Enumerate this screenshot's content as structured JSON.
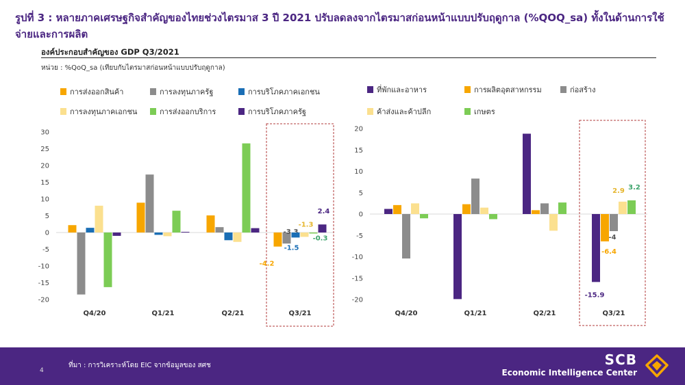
{
  "header": {
    "title": "รูปที่ 3 : หลายภาคเศรษฐกิจสำคัญของไทยช่วงไตรมาส 3 ปี 2021 ปรับลดลงจากไตรมาสก่อนหน้าแบบปรับฤดูกาล (%QOQ_sa) ทั้งในด้านการใช้จ่ายและการผลิต",
    "subtitle": "องค์ประกอบสำคัญของ GDP Q3/2021",
    "unit": "หน่วย : %QoQ_sa (เทียบกับไตรมาสก่อนหน้าแบบปรับฤดูกาล)"
  },
  "footer": {
    "page": "4",
    "source": "ที่มา : การวิเคราะห์โดย EIC จากข้อมูลของ สศช",
    "brand_name": "SCB",
    "brand_sub": "Economic Intelligence Center"
  },
  "chart_data": [
    {
      "type": "bar",
      "categories": [
        "Q4/20",
        "Q1/21",
        "Q2/21",
        "Q3/21"
      ],
      "ylim": [
        -20,
        30
      ],
      "yticks": [
        -20,
        -15,
        -10,
        -5,
        0,
        5,
        10,
        15,
        20,
        25,
        30
      ],
      "legend_position": "top",
      "highlight_category": "Q3/21",
      "series": [
        {
          "name": "การส่งออกสินค้า",
          "color": "#f7a600",
          "values": [
            2.2,
            8.9,
            5.1,
            -4.2
          ],
          "labels": [
            null,
            null,
            null,
            "-4.2"
          ]
        },
        {
          "name": "การลงทุนภาครัฐ",
          "color": "#8c8c8c",
          "values": [
            -18.5,
            17.3,
            1.6,
            -3.3
          ],
          "labels": [
            null,
            null,
            null,
            "-3.3"
          ]
        },
        {
          "name": "การบริโภคภาคเอกชน",
          "color": "#1a6eb5",
          "values": [
            1.4,
            -0.7,
            -2.3,
            -1.5
          ],
          "labels": [
            null,
            null,
            null,
            "-1.5"
          ]
        },
        {
          "name": "การลงทุนภาคเอกชน",
          "color": "#fbe08f",
          "values": [
            8.0,
            -1.1,
            -2.8,
            -1.3
          ],
          "labels": [
            null,
            null,
            null,
            "-1.3"
          ]
        },
        {
          "name": "การส่งออกบริการ",
          "color": "#7ccc55",
          "values": [
            -16.3,
            6.5,
            26.6,
            -0.3
          ],
          "labels": [
            null,
            null,
            null,
            "-0.3"
          ]
        },
        {
          "name": "การบริโภคภาครัฐ",
          "color": "#4b2682",
          "values": [
            -1.0,
            0.2,
            1.3,
            2.4
          ],
          "labels": [
            null,
            null,
            null,
            "2.4"
          ]
        }
      ]
    },
    {
      "type": "bar",
      "categories": [
        "Q4/20",
        "Q1/21",
        "Q2/21",
        "Q3/21"
      ],
      "ylim": [
        -20,
        20
      ],
      "yticks": [
        -20,
        -15,
        -10,
        -5,
        0,
        5,
        10,
        15,
        20
      ],
      "legend_position": "top",
      "highlight_category": "Q3/21",
      "series": [
        {
          "name": "ที่พักและอาหาร",
          "color": "#4b2682",
          "values": [
            1.2,
            -19.9,
            18.8,
            -15.9
          ],
          "labels": [
            null,
            null,
            null,
            "-15.9"
          ]
        },
        {
          "name": "การผลิตอุตสาหกรรม",
          "color": "#f7a600",
          "values": [
            2.1,
            2.3,
            0.9,
            -6.4
          ],
          "labels": [
            null,
            null,
            null,
            "-6.4"
          ]
        },
        {
          "name": "ก่อสร้าง",
          "color": "#8c8c8c",
          "values": [
            -10.4,
            8.3,
            2.5,
            -4.0
          ],
          "labels": [
            null,
            null,
            null,
            "-4"
          ]
        },
        {
          "name": "ค้าส่งและค้าปลีก",
          "color": "#fbe08f",
          "values": [
            2.5,
            1.5,
            -3.9,
            2.9
          ],
          "labels": [
            null,
            null,
            null,
            "2.9"
          ]
        },
        {
          "name": "เกษตร",
          "color": "#7ccc55",
          "values": [
            -1.0,
            -1.2,
            2.7,
            3.2
          ],
          "labels": [
            null,
            null,
            null,
            "3.2"
          ]
        }
      ]
    }
  ]
}
